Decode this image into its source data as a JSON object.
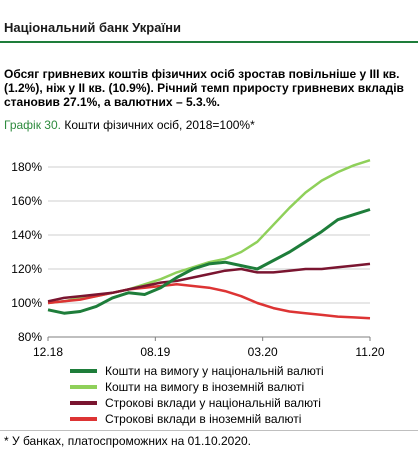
{
  "header": {
    "bank_name": "Національний банк України",
    "headline": "Обсяг гривневих коштів фізичних осіб зростав повільніше у ІІІ кв. (1.2%), ніж у ІІ кв. (10.9%). Річний темп приросту гривневих вкладів становив 27.1%, а валютних – 5.3.%.",
    "chart_number": "Графік 30.",
    "chart_title": "Кошти фізичних осіб, 2018=100%*"
  },
  "footnote": "* У банках, платоспроможних на 01.10.2020.",
  "colors": {
    "dark_green": "#1e7d3a",
    "light_green": "#8fd05a",
    "maroon": "#7a1530",
    "red": "#dd3434",
    "grid": "#cfcfcf"
  },
  "chart_data": {
    "type": "line",
    "title": "Кошти фізичних осіб, 2018=100%*",
    "x_ticks": [
      "12.18",
      "08.19",
      "03.20",
      "11.20"
    ],
    "x_range": [
      "12.18",
      "11.20"
    ],
    "ylim": [
      80,
      180
    ],
    "y_ticks": [
      "80%",
      "100%",
      "120%",
      "140%",
      "160%",
      "180%"
    ],
    "grid": "horizontal",
    "legend_position": "bottom",
    "series": [
      {
        "name": "Кошти на вимогу у національній валюті",
        "color": "#1e7d3a",
        "x": [
          0,
          0.05,
          0.1,
          0.15,
          0.2,
          0.25,
          0.3,
          0.35,
          0.4,
          0.45,
          0.5,
          0.55,
          0.6,
          0.65,
          0.7,
          0.75,
          0.8,
          0.85,
          0.9,
          0.95,
          1.0
        ],
        "y": [
          96,
          94,
          95,
          98,
          103,
          106,
          105,
          109,
          115,
          120,
          123,
          124,
          122,
          120,
          125,
          130,
          136,
          142,
          149,
          152,
          155
        ]
      },
      {
        "name": "Кошти на вимогу в іноземній валюті",
        "color": "#8fd05a",
        "x": [
          0,
          0.05,
          0.1,
          0.15,
          0.2,
          0.25,
          0.3,
          0.35,
          0.4,
          0.45,
          0.5,
          0.55,
          0.6,
          0.65,
          0.7,
          0.75,
          0.8,
          0.85,
          0.9,
          0.95,
          1.0
        ],
        "y": [
          100,
          101,
          103,
          104,
          106,
          108,
          111,
          114,
          118,
          121,
          124,
          126,
          130,
          136,
          146,
          156,
          165,
          172,
          177,
          181,
          184
        ]
      },
      {
        "name": "Строкові вклади у національній валюті",
        "color": "#7a1530",
        "x": [
          0,
          0.05,
          0.1,
          0.15,
          0.2,
          0.25,
          0.3,
          0.35,
          0.4,
          0.45,
          0.5,
          0.55,
          0.6,
          0.65,
          0.7,
          0.75,
          0.8,
          0.85,
          0.9,
          0.95,
          1.0
        ],
        "y": [
          101,
          103,
          104,
          105,
          106,
          108,
          110,
          112,
          113,
          115,
          117,
          119,
          120,
          118,
          118,
          119,
          120,
          120,
          121,
          122,
          123
        ]
      },
      {
        "name": "Строкові вклади в іноземній валюті",
        "color": "#dd3434",
        "x": [
          0,
          0.05,
          0.1,
          0.15,
          0.2,
          0.25,
          0.3,
          0.35,
          0.4,
          0.45,
          0.5,
          0.55,
          0.6,
          0.65,
          0.7,
          0.75,
          0.8,
          0.85,
          0.9,
          0.95,
          1.0
        ],
        "y": [
          100,
          101,
          102,
          104,
          106,
          108,
          109,
          110,
          111,
          110,
          109,
          107,
          104,
          100,
          97,
          95,
          94,
          93,
          92,
          91.5,
          91
        ]
      }
    ]
  }
}
